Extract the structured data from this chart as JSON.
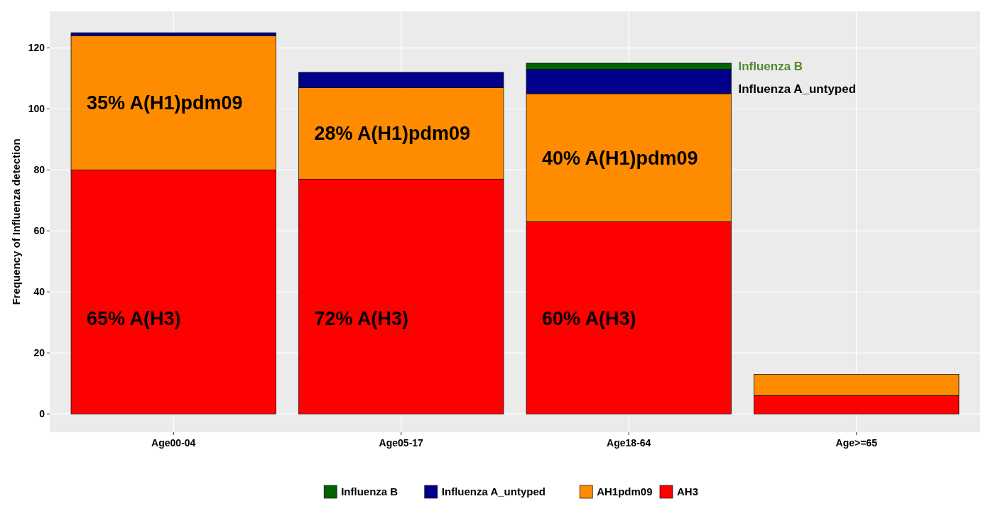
{
  "chart_data": {
    "type": "bar",
    "stacked": true,
    "ylabel": "Frequency of Influenza detection",
    "categories": [
      "Age00-04",
      "Age05-17",
      "Age18-64",
      "Age>=65"
    ],
    "series": [
      {
        "name": "AH3",
        "color": "#ff0000",
        "values": [
          80,
          77,
          63,
          6
        ]
      },
      {
        "name": "AH1pdm09",
        "color": "#ff8c00",
        "values": [
          44,
          30,
          42,
          7
        ]
      },
      {
        "name": "Influenza A_untyped",
        "color": "#00008b",
        "values": [
          1,
          5,
          8,
          0
        ]
      },
      {
        "name": "Influenza B",
        "color": "#006400",
        "values": [
          0,
          0,
          2,
          0
        ]
      }
    ],
    "ylim": [
      -6,
      132
    ],
    "yticks": [
      0,
      20,
      40,
      60,
      80,
      100,
      120
    ],
    "grid": true,
    "legend": "bottom",
    "annotations": [
      "65% A(H3)",
      "35% A(H1)pdm09",
      "72% A(H3)",
      "28% A(H1)pdm09",
      "60% A(H3)",
      "40% A(H1)pdm09",
      "Influenza A_untyped",
      "Influenza B"
    ]
  }
}
